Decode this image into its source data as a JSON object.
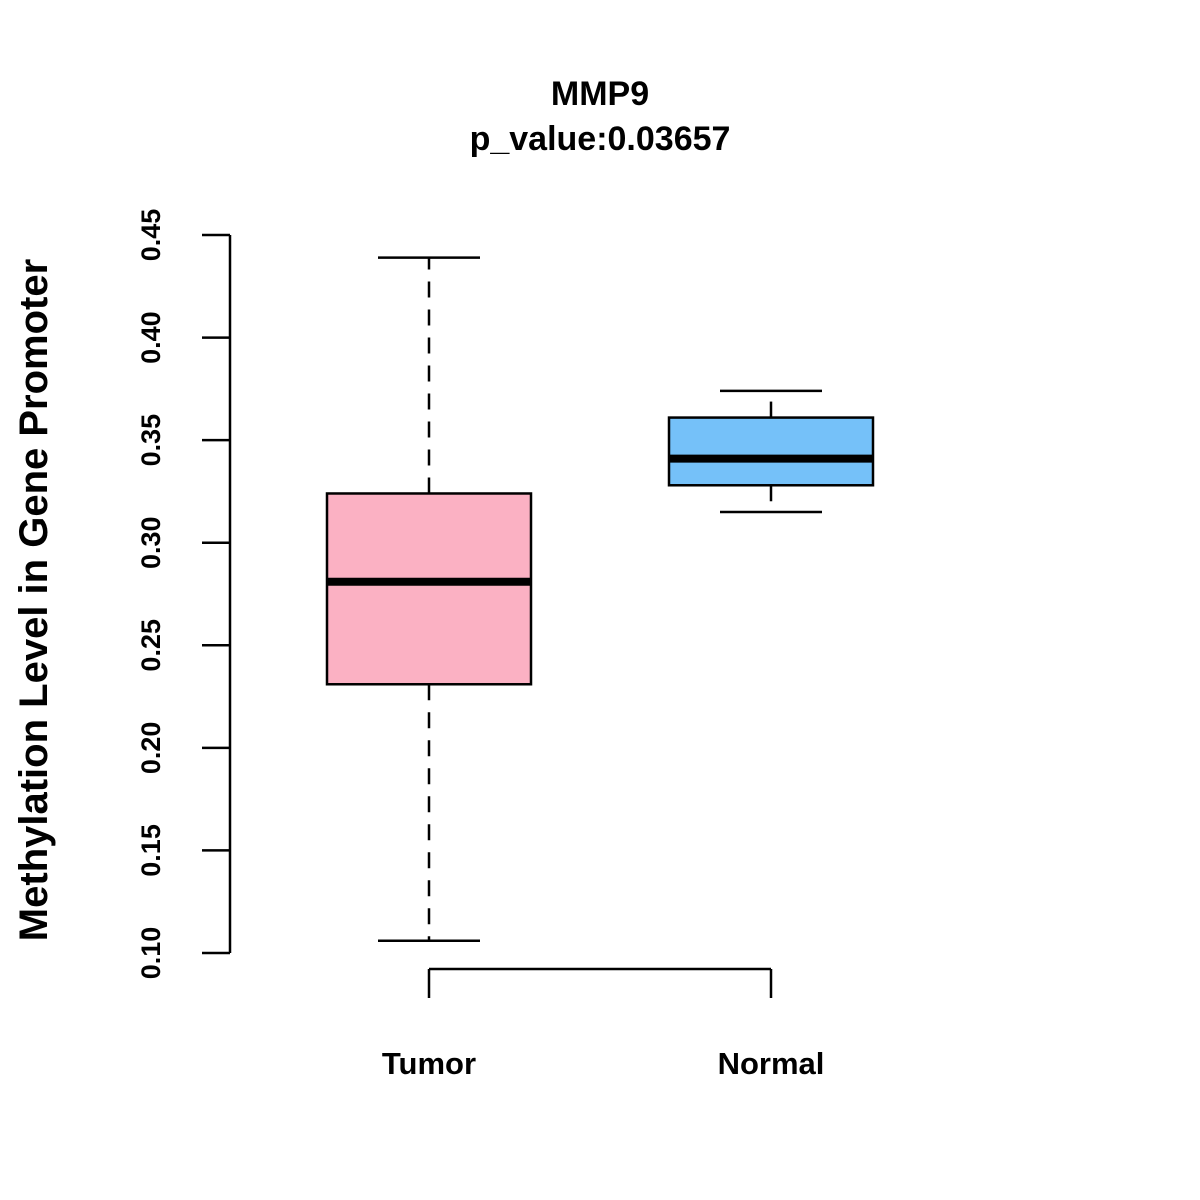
{
  "chart_data": {
    "type": "box",
    "title": "MMP9",
    "subtitle": "p_value:0.03657",
    "xlabel": "",
    "ylabel": "Methylation Level in Gene Promoter",
    "ylim": [
      0.1,
      0.45
    ],
    "yticks": [
      "0.10",
      "0.15",
      "0.20",
      "0.25",
      "0.30",
      "0.35",
      "0.40",
      "0.45"
    ],
    "ytick_values": [
      0.1,
      0.15,
      0.2,
      0.25,
      0.3,
      0.35,
      0.4,
      0.45
    ],
    "categories": [
      "Tumor",
      "Normal"
    ],
    "grid": false,
    "series": [
      {
        "name": "Tumor",
        "min": 0.106,
        "q1": 0.231,
        "median": 0.281,
        "q3": 0.324,
        "max": 0.439,
        "color": "#FBB1C3"
      },
      {
        "name": "Normal",
        "min": 0.315,
        "q1": 0.328,
        "median": 0.341,
        "q3": 0.361,
        "max": 0.374,
        "color": "#75C1F9"
      }
    ]
  }
}
